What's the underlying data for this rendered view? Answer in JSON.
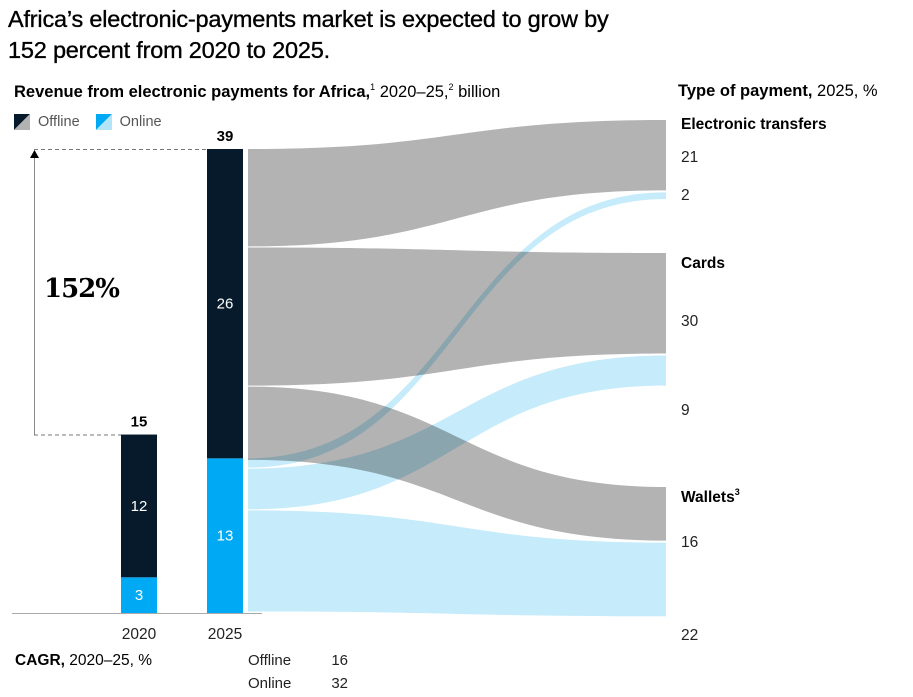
{
  "title": "Africa’s electronic-payments market is expected to grow by 152 percent from  2020 to 2025.",
  "subtitle": {
    "bold": "Revenue from electronic payments for Africa,",
    "note1": "1",
    "rest": " 2020–25,",
    "note2": "2",
    "unit": " billion"
  },
  "legend": [
    {
      "label": "Offline",
      "colors": [
        "#061a2b",
        "#b3b3b3"
      ]
    },
    {
      "label": "Online",
      "colors": [
        "#00a9f4",
        "#b3e4f8"
      ]
    }
  ],
  "right_title": {
    "bold": "Type of payment,",
    "rest": " 2025, %"
  },
  "growth_label": "152%",
  "colors": {
    "offline_bar": "#061a2b",
    "online_bar": "#00a9f4",
    "offline_flow": "#b3b3b3",
    "online_flow": "#b3e4f8"
  },
  "chart_data": {
    "type": "bar",
    "title": "Revenue from electronic payments for Africa, 2020–25, billion",
    "categories": [
      "2020",
      "2025"
    ],
    "series": [
      {
        "name": "Offline",
        "values": [
          12,
          26
        ]
      },
      {
        "name": "Online",
        "values": [
          3,
          13
        ]
      }
    ],
    "totals": [
      15,
      39
    ],
    "growth_percent": 152,
    "sankey": {
      "title": "Type of payment, 2025, %",
      "source": "2025",
      "nodes": [
        {
          "name": "Electronic transfers",
          "offline": 21,
          "online": 2
        },
        {
          "name": "Cards",
          "offline": 30,
          "online": 9
        },
        {
          "name": "Wallets",
          "footnote": "3",
          "offline": 16,
          "online": 22
        }
      ]
    },
    "cagr": {
      "label_bold": "CAGR,",
      "label_rest": " 2020–25, %",
      "rows": [
        {
          "name": "Offline",
          "value": 16
        },
        {
          "name": "Online",
          "value": 32
        }
      ]
    }
  }
}
